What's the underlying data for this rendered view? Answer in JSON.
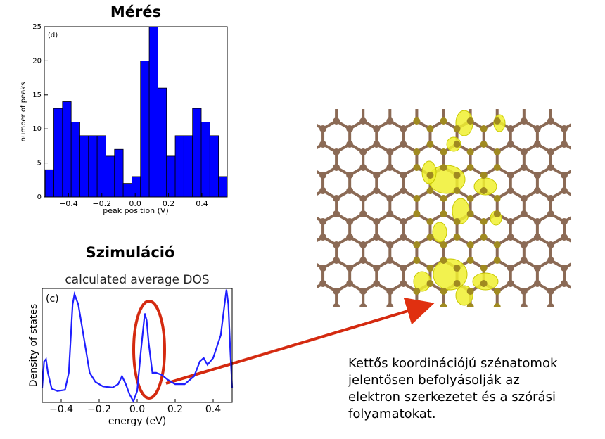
{
  "chart_data": [
    {
      "type": "histogram",
      "title": "Mérés",
      "annotation": "(d)",
      "x_label": "peak position (V)",
      "y_label": "number of peaks",
      "color": "#0000ff",
      "bins": [
        -0.54,
        -0.488,
        -0.436,
        -0.384,
        -0.332,
        -0.28,
        -0.228,
        -0.176,
        -0.124,
        -0.072,
        -0.02,
        0.032,
        0.084,
        0.136,
        0.188,
        0.24,
        0.292,
        0.344,
        0.396,
        0.448,
        0.5,
        0.552
      ],
      "values": [
        4,
        13,
        14,
        11,
        9,
        9,
        9,
        6,
        7,
        2,
        3,
        20,
        25,
        16,
        6,
        9,
        9,
        13,
        11,
        9,
        3
      ],
      "xlim": [
        -0.545,
        0.552
      ],
      "ylim": [
        0,
        25
      ],
      "xticks": [
        {
          "value": -0.4,
          "label": "−0.4"
        },
        {
          "value": -0.2,
          "label": "−0.2"
        },
        {
          "value": 0,
          "label": "0.0"
        },
        {
          "value": 0.2,
          "label": "0.2"
        },
        {
          "value": 0.4,
          "label": "0.4"
        }
      ],
      "yticks": [
        0,
        5,
        10,
        15,
        20,
        25
      ]
    },
    {
      "type": "line",
      "title": "Szimuláció",
      "subtitle": "calculated average DOS",
      "annotation": "(c)",
      "x_label": "energy (eV)",
      "y_label": "Density of states",
      "color": "#1f1fff",
      "x": [
        -0.5,
        -0.49,
        -0.48,
        -0.47,
        -0.45,
        -0.42,
        -0.38,
        -0.36,
        -0.34,
        -0.33,
        -0.31,
        -0.29,
        -0.27,
        -0.25,
        -0.22,
        -0.18,
        -0.13,
        -0.1,
        -0.08,
        -0.06,
        -0.04,
        -0.02,
        0.0,
        0.02,
        0.04,
        0.05,
        0.06,
        0.08,
        0.1,
        0.13,
        0.16,
        0.2,
        0.25,
        0.3,
        0.33,
        0.35,
        0.37,
        0.4,
        0.44,
        0.46,
        0.47,
        0.48,
        0.49,
        0.5
      ],
      "values": [
        0.13,
        0.36,
        0.38,
        0.26,
        0.12,
        0.1,
        0.11,
        0.26,
        0.86,
        0.95,
        0.86,
        0.66,
        0.46,
        0.26,
        0.18,
        0.14,
        0.13,
        0.16,
        0.23,
        0.16,
        0.07,
        0.01,
        0.1,
        0.46,
        0.78,
        0.72,
        0.53,
        0.26,
        0.26,
        0.24,
        0.2,
        0.16,
        0.16,
        0.23,
        0.36,
        0.39,
        0.33,
        0.39,
        0.59,
        0.86,
        0.99,
        0.86,
        0.46,
        0.13
      ],
      "xlim": [
        -0.5,
        0.5
      ],
      "ylim": [
        0,
        1
      ],
      "xticks": [
        {
          "value": -0.4,
          "label": "−0.4"
        },
        {
          "value": -0.2,
          "label": "−0.2"
        },
        {
          "value": 0,
          "label": "0.0"
        },
        {
          "value": 0.2,
          "label": "0.2"
        },
        {
          "value": 0.4,
          "label": "0.4"
        }
      ]
    }
  ],
  "caption": {
    "lines": [
      "Kettős koordinációjú szénatomok",
      "jelentősen befolyásolják az",
      "elektron szerkezetet és a szórási",
      "folyamatokat."
    ]
  }
}
